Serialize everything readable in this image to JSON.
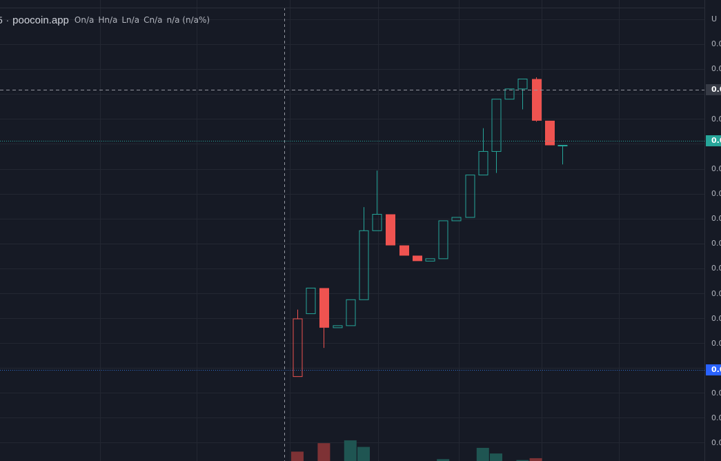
{
  "legend": {
    "interval": "5",
    "separator": "·",
    "symbol": "poocoin.app",
    "open": "On/a",
    "high": "Hn/a",
    "low": "Ln/a",
    "close": "Cn/a",
    "change": "n/a (n/a%)"
  },
  "price_axis": {
    "top_button": "U",
    "ticks": [
      "0.0",
      "0.0",
      "0.0",
      "0.0",
      "0.0",
      "0.0",
      "0.0",
      "0.0",
      "0.0",
      "0.0",
      "0.0",
      "0.0",
      "0.0",
      "0.0",
      "0.0",
      "0.0",
      "0.0",
      "0.0"
    ],
    "crosshair_label": "0.0",
    "last_price_label": "0.0",
    "reference_label": "0.0"
  },
  "colors": {
    "background": "#161a25",
    "grid": "#232732",
    "up": "#26a69a",
    "down": "#ef5350",
    "up_volume": "#1f5552",
    "down_volume": "#7e3235",
    "crosshair": "#9598a1",
    "crosshair_label_bg": "#363a45",
    "last_price_bg": "#26a69a",
    "reference_bg": "#2962ff"
  },
  "chart_data": {
    "type": "candlestick",
    "title": "",
    "xlabel": "",
    "ylabel": "",
    "ylim": [
      0,
      100
    ],
    "volume_ylim": [
      0,
      100
    ],
    "candles": [
      {
        "o": 19.8,
        "h": 22.5,
        "l": 2.9,
        "c": 2.9,
        "v": 10,
        "up": false,
        "hollow": true
      },
      {
        "o": 28.8,
        "h": 28.8,
        "l": 21.3,
        "c": 21.3,
        "v": 0,
        "up": true,
        "hollow": true
      },
      {
        "o": 28.8,
        "h": 28.8,
        "l": 11.3,
        "c": 17.2,
        "v": 19,
        "up": false,
        "hollow": false
      },
      {
        "o": 17.2,
        "h": 17.8,
        "l": 17.2,
        "c": 17.8,
        "v": 0,
        "up": true,
        "hollow": true
      },
      {
        "o": 17.8,
        "h": 25.4,
        "l": 17.8,
        "c": 25.4,
        "v": 22,
        "up": true,
        "hollow": true
      },
      {
        "o": 25.4,
        "h": 52.5,
        "l": 25.4,
        "c": 45.6,
        "v": 15,
        "up": true,
        "hollow": true
      },
      {
        "o": 45.6,
        "h": 63.2,
        "l": 45.6,
        "c": 50.4,
        "v": 0,
        "up": true,
        "hollow": true
      },
      {
        "o": 50.4,
        "h": 50.4,
        "l": 41.3,
        "c": 41.3,
        "v": 0,
        "up": false,
        "hollow": false
      },
      {
        "o": 41.3,
        "h": 41.3,
        "l": 38.3,
        "c": 38.3,
        "v": 0,
        "up": false,
        "hollow": false
      },
      {
        "o": 38.3,
        "h": 38.3,
        "l": 36.7,
        "c": 36.7,
        "v": 0,
        "up": false,
        "hollow": false
      },
      {
        "o": 36.7,
        "h": 37.4,
        "l": 36.7,
        "c": 37.4,
        "v": 0,
        "up": true,
        "hollow": true
      },
      {
        "o": 37.4,
        "h": 48.5,
        "l": 37.4,
        "c": 48.5,
        "v": 2,
        "up": true,
        "hollow": true
      },
      {
        "o": 48.5,
        "h": 49.5,
        "l": 48.5,
        "c": 49.5,
        "v": 0,
        "up": true,
        "hollow": true
      },
      {
        "o": 49.5,
        "h": 61.9,
        "l": 49.5,
        "c": 61.9,
        "v": 0,
        "up": true,
        "hollow": true
      },
      {
        "o": 61.9,
        "h": 75.6,
        "l": 61.9,
        "c": 68.8,
        "v": 14,
        "up": true,
        "hollow": true
      },
      {
        "o": 68.8,
        "h": 84.1,
        "l": 62.5,
        "c": 84.1,
        "v": 8,
        "up": true,
        "hollow": true
      },
      {
        "o": 84.1,
        "h": 87.1,
        "l": 84.1,
        "c": 87.1,
        "v": 0,
        "up": true,
        "hollow": true
      },
      {
        "o": 87.1,
        "h": 90.0,
        "l": 81.1,
        "c": 90.0,
        "v": 1,
        "up": true,
        "hollow": true
      },
      {
        "o": 90.0,
        "h": 90.5,
        "l": 77.5,
        "c": 77.8,
        "v": 3,
        "up": false,
        "hollow": false
      },
      {
        "o": 77.8,
        "h": 77.8,
        "l": 70.6,
        "c": 70.6,
        "v": 0,
        "up": false,
        "hollow": false
      },
      {
        "o": 70.6,
        "h": 70.6,
        "l": 65.0,
        "c": 70.6,
        "v": 0,
        "up": true,
        "hollow": true
      }
    ]
  }
}
